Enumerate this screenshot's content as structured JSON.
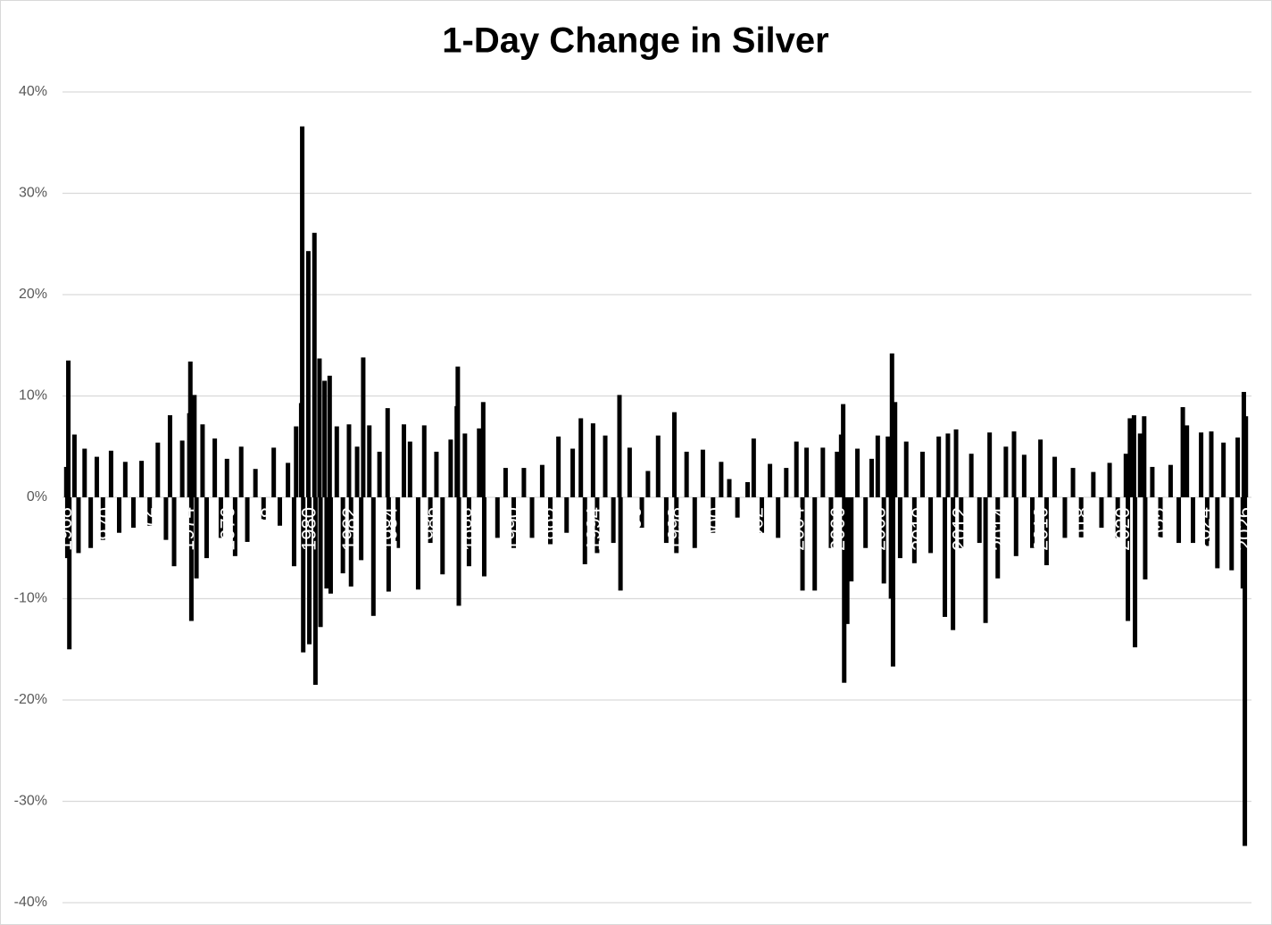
{
  "chart_data": {
    "type": "bar",
    "title": "1-Day Change in Silver",
    "color": "#000000",
    "x": [
      1968.0,
      1968.05,
      1968.1,
      1968.15,
      1968.4,
      1968.6,
      1968.9,
      1969.2,
      1969.5,
      1969.8,
      1970.2,
      1970.6,
      1970.9,
      1971.3,
      1971.7,
      1972.1,
      1972.5,
      1972.9,
      1973.1,
      1973.3,
      1973.7,
      1974.05,
      1974.1,
      1974.15,
      1974.3,
      1974.4,
      1974.7,
      1974.9,
      1975.3,
      1975.6,
      1975.9,
      1976.3,
      1976.6,
      1976.9,
      1977.3,
      1977.7,
      1978.2,
      1978.5,
      1978.9,
      1979.2,
      1979.3,
      1979.55,
      1979.6,
      1979.65,
      1979.9,
      1979.95,
      1980.2,
      1980.25,
      1980.45,
      1980.5,
      1980.7,
      1980.8,
      1980.95,
      1981.0,
      1981.3,
      1981.6,
      1981.9,
      1982.0,
      1982.3,
      1982.5,
      1982.6,
      1982.9,
      1983.1,
      1983.4,
      1983.8,
      1983.85,
      1984.3,
      1984.6,
      1984.9,
      1985.3,
      1985.6,
      1985.9,
      1986.2,
      1986.5,
      1986.9,
      1987.2,
      1987.25,
      1987.3,
      1987.6,
      1987.8,
      1988.3,
      1988.5,
      1988.55,
      1989.2,
      1989.6,
      1990.0,
      1990.5,
      1990.9,
      1991.4,
      1991.8,
      1992.2,
      1992.6,
      1992.9,
      1993.3,
      1993.5,
      1993.9,
      1994.1,
      1994.5,
      1994.9,
      1995.2,
      1995.25,
      1995.7,
      1996.3,
      1996.6,
      1997.1,
      1997.5,
      1997.9,
      1998.0,
      1998.5,
      1998.9,
      1999.3,
      1999.8,
      2000.2,
      2000.6,
      2001.0,
      2001.5,
      2001.8,
      2002.2,
      2002.6,
      2003.0,
      2003.4,
      2003.9,
      2004.2,
      2004.4,
      2004.8,
      2005.2,
      2005.6,
      2005.9,
      2006.1,
      2006.2,
      2006.25,
      2006.4,
      2006.6,
      2006.9,
      2007.3,
      2007.6,
      2007.9,
      2008.2,
      2008.4,
      2008.55,
      2008.6,
      2008.65,
      2008.75,
      2009.0,
      2009.3,
      2009.7,
      2010.1,
      2010.5,
      2010.9,
      2011.2,
      2011.35,
      2011.6,
      2011.75,
      2012.0,
      2012.5,
      2012.9,
      2013.2,
      2013.4,
      2013.8,
      2014.2,
      2014.6,
      2014.7,
      2015.1,
      2015.5,
      2015.9,
      2016.2,
      2016.6,
      2017.1,
      2017.5,
      2017.9,
      2018.5,
      2018.9,
      2019.3,
      2019.7,
      2020.1,
      2020.2,
      2020.3,
      2020.5,
      2020.55,
      2020.8,
      2021.0,
      2021.05,
      2021.4,
      2021.8,
      2022.3,
      2022.7,
      2022.9,
      2023.1,
      2023.4,
      2023.8,
      2024.1,
      2024.3,
      2024.6,
      2024.9,
      2025.3,
      2025.6,
      2025.85,
      2025.9,
      2025.95,
      2026.0
    ],
    "values": [
      3.0,
      -6.0,
      13.5,
      -15.0,
      6.2,
      -5.5,
      4.8,
      -5.0,
      4.0,
      -4.2,
      4.6,
      -3.5,
      3.5,
      -3.0,
      3.6,
      -2.8,
      5.4,
      -4.2,
      8.1,
      -6.8,
      5.6,
      8.3,
      13.4,
      -12.2,
      10.1,
      -8.0,
      7.2,
      -6.0,
      5.8,
      -4.0,
      3.8,
      -5.8,
      5.0,
      -4.4,
      2.8,
      -2.2,
      4.9,
      -2.8,
      3.4,
      -6.8,
      7.0,
      9.3,
      36.6,
      -15.3,
      24.3,
      -14.5,
      26.1,
      -18.5,
      13.7,
      -12.8,
      11.5,
      -9.0,
      12.0,
      -9.5,
      7.0,
      -7.5,
      7.2,
      -8.8,
      5.0,
      -6.2,
      13.8,
      7.1,
      -11.7,
      4.5,
      8.8,
      -9.3,
      -5.0,
      7.2,
      5.5,
      -9.1,
      7.1,
      -4.5,
      4.5,
      -7.6,
      5.7,
      9.0,
      12.9,
      -10.7,
      6.3,
      -6.8,
      6.8,
      9.4,
      -7.8,
      -4.0,
      2.9,
      -5.0,
      2.9,
      -4.0,
      3.2,
      -4.8,
      6.0,
      -3.5,
      4.8,
      7.8,
      -6.6,
      7.3,
      -5.5,
      6.1,
      -4.5,
      10.1,
      -9.2,
      4.9,
      -3.0,
      2.6,
      6.1,
      -4.5,
      8.4,
      -5.5,
      4.5,
      -5.0,
      4.7,
      -3.5,
      3.5,
      1.8,
      -2.0,
      1.5,
      5.8,
      -3.5,
      3.3,
      -4.0,
      2.9,
      5.5,
      -9.2,
      4.9,
      -9.2,
      4.9,
      -5.0,
      4.5,
      6.2,
      9.2,
      -18.3,
      -12.5,
      -8.3,
      4.8,
      -5.0,
      3.8,
      6.1,
      -8.5,
      6.0,
      -10.0,
      14.2,
      -16.7,
      9.4,
      -6.0,
      5.5,
      -6.5,
      4.5,
      -5.5,
      6.0,
      -11.8,
      6.3,
      -13.1,
      6.7,
      -5.0,
      4.3,
      -4.5,
      -12.4,
      6.4,
      -8.0,
      5.0,
      6.5,
      -5.8,
      4.2,
      -5.0,
      5.7,
      -6.7,
      4.0,
      -4.0,
      2.9,
      -4.0,
      2.5,
      -3.0,
      3.4,
      -4.0,
      4.3,
      -12.2,
      7.8,
      8.1,
      -14.8,
      6.3,
      8.0,
      -8.1,
      3.0,
      -4.0,
      3.2,
      -4.5,
      8.9,
      7.1,
      -4.5,
      6.4,
      -4.8,
      6.5,
      -7.0,
      5.4,
      -7.2,
      5.9,
      -9.0,
      10.4,
      -34.4,
      8.0
    ],
    "xlim": [
      1967.9,
      2026.1
    ],
    "xticks": [
      1968,
      1970,
      1972,
      1974,
      1976,
      1978,
      1980,
      1982,
      1984,
      1986,
      1988,
      1990,
      1992,
      1994,
      1996,
      1998,
      2000,
      2002,
      2004,
      2006,
      2008,
      2010,
      2012,
      2014,
      2016,
      2018,
      2020,
      2022,
      2024,
      2026
    ],
    "ylim": [
      -40,
      40
    ],
    "yticks": [
      {
        "value": 40,
        "label": "40%"
      },
      {
        "value": 30,
        "label": "30%"
      },
      {
        "value": 20,
        "label": "20%"
      },
      {
        "value": 10,
        "label": "10%"
      },
      {
        "value": 0,
        "label": "0%"
      },
      {
        "value": -10,
        "label": "-10%"
      },
      {
        "value": -20,
        "label": "-20%"
      },
      {
        "value": -30,
        "label": "-30%"
      },
      {
        "value": -40,
        "label": "-40%"
      }
    ],
    "grid": true
  }
}
